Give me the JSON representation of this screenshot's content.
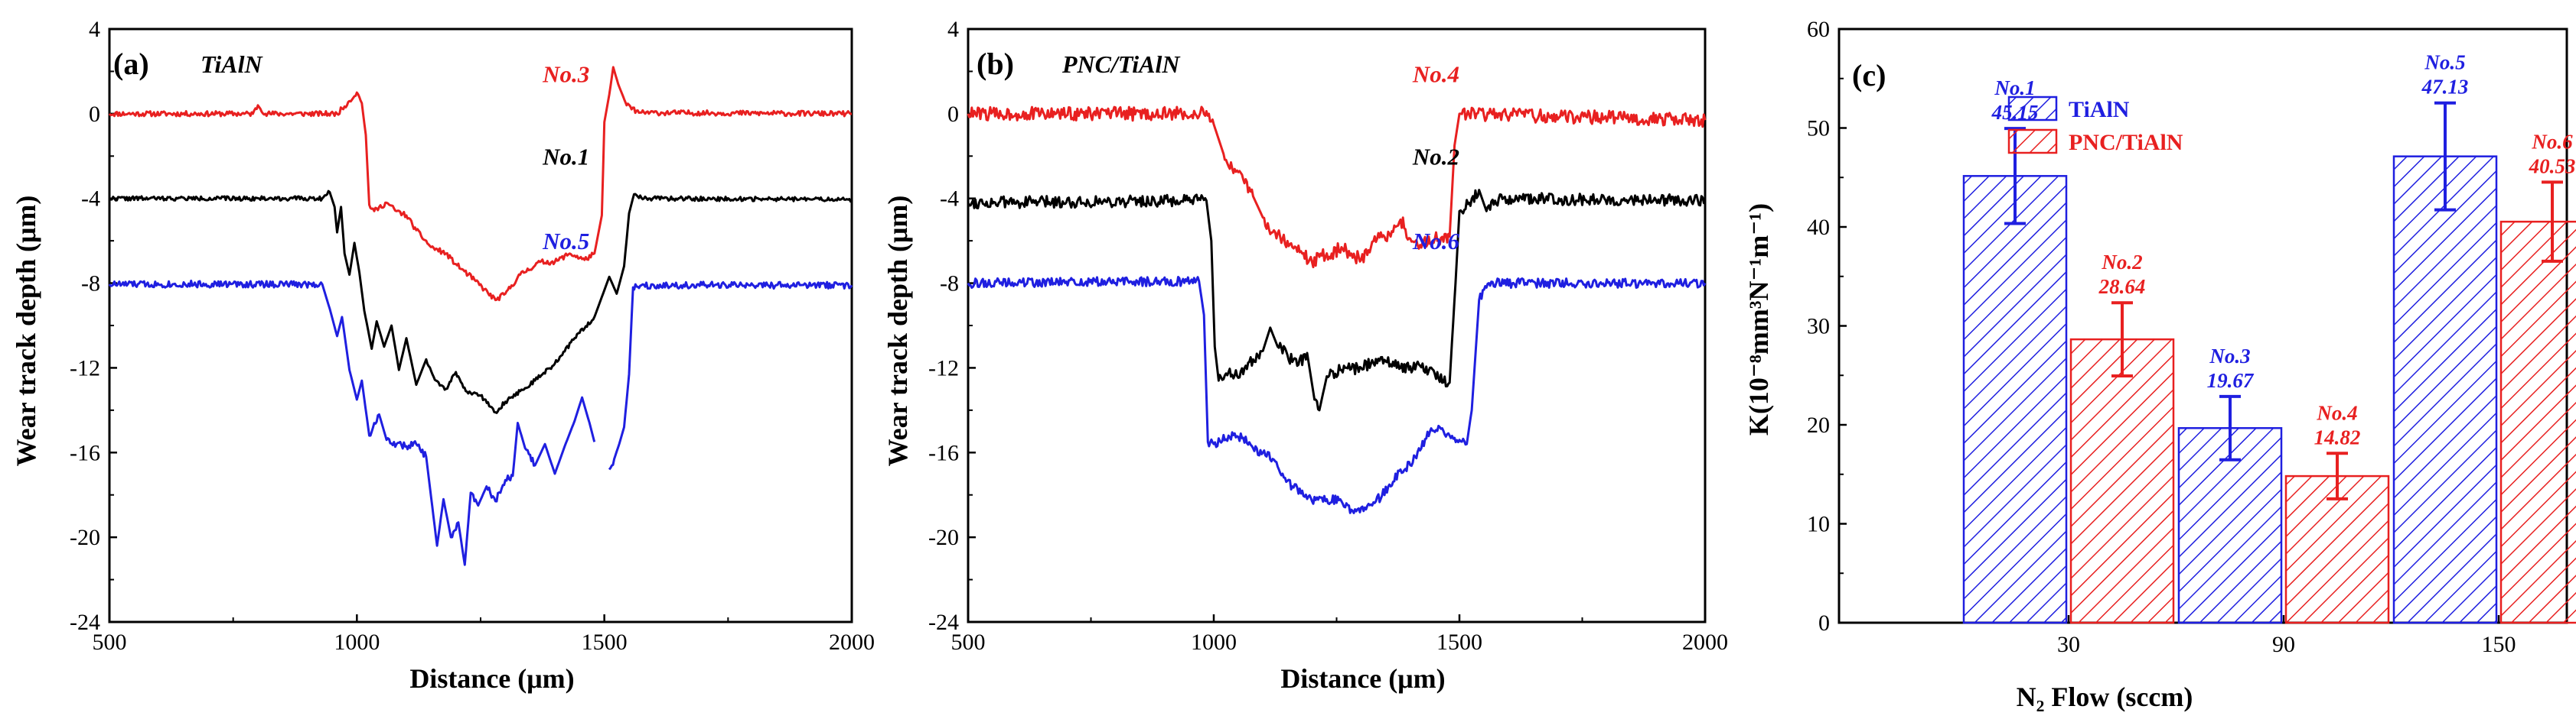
{
  "colors": {
    "TiAlN": "#1f1fe0",
    "PNC": "#e82020",
    "black": "#000000"
  },
  "chart_data": [
    {
      "type": "line",
      "panel_label": "(a)",
      "title": "TiAlN",
      "xlabel": "Distance (μm)",
      "ylabel": "Wear track depth (μm)",
      "xlim": [
        500,
        2000
      ],
      "ylim": [
        -24,
        4
      ],
      "xticks": [
        500,
        1000,
        1500,
        2000
      ],
      "yticks": [
        4,
        0,
        -4,
        -8,
        -12,
        -16,
        -20,
        -24
      ],
      "xtick_labels": [
        "500",
        "1000",
        "1500",
        "2000"
      ],
      "ytick_labels": [
        "4",
        "0",
        "-4",
        "-8",
        "-12",
        "-16",
        "-20",
        "-24"
      ],
      "series": [
        {
          "name": "No.3",
          "color": "#e82020",
          "noise": 0.12,
          "seed": 11,
          "points": [
            [
              500,
              0
            ],
            [
              790,
              0
            ],
            [
              800,
              0.4
            ],
            [
              815,
              0
            ],
            [
              960,
              0
            ],
            [
              985,
              0.6
            ],
            [
              1000,
              1.0
            ],
            [
              1010,
              0.5
            ],
            [
              1018,
              -1.0
            ],
            [
              1025,
              -4.3
            ],
            [
              1035,
              -4.6
            ],
            [
              1060,
              -4.2
            ],
            [
              1080,
              -4.6
            ],
            [
              1100,
              -4.8
            ],
            [
              1120,
              -5.5
            ],
            [
              1150,
              -6.3
            ],
            [
              1180,
              -6.6
            ],
            [
              1200,
              -7.1
            ],
            [
              1240,
              -7.9
            ],
            [
              1280,
              -8.8
            ],
            [
              1300,
              -8.5
            ],
            [
              1330,
              -7.6
            ],
            [
              1370,
              -7.0
            ],
            [
              1400,
              -7.0
            ],
            [
              1430,
              -6.6
            ],
            [
              1460,
              -6.9
            ],
            [
              1480,
              -6.6
            ],
            [
              1495,
              -4.8
            ],
            [
              1500,
              -0.4
            ],
            [
              1510,
              0.9
            ],
            [
              1518,
              2.2
            ],
            [
              1528,
              1.4
            ],
            [
              1545,
              0.4
            ],
            [
              1570,
              0.05
            ],
            [
              2000,
              0
            ]
          ]
        },
        {
          "name": "No.1",
          "color": "#000000",
          "noise": 0.1,
          "seed": 22,
          "points": [
            [
              500,
              -4
            ],
            [
              930,
              -4
            ],
            [
              945,
              -3.7
            ],
            [
              955,
              -4.4
            ],
            [
              960,
              -5.6
            ],
            [
              968,
              -4.4
            ],
            [
              975,
              -6.6
            ],
            [
              985,
              -7.6
            ],
            [
              995,
              -6.1
            ],
            [
              1005,
              -7.5
            ],
            [
              1015,
              -9.3
            ],
            [
              1030,
              -11.1
            ],
            [
              1040,
              -9.8
            ],
            [
              1055,
              -11.0
            ],
            [
              1070,
              -10.0
            ],
            [
              1085,
              -12.1
            ],
            [
              1100,
              -10.6
            ],
            [
              1120,
              -12.8
            ],
            [
              1140,
              -11.6
            ],
            [
              1160,
              -12.6
            ],
            [
              1180,
              -13.0
            ],
            [
              1200,
              -12.2
            ],
            [
              1220,
              -13.1
            ],
            [
              1240,
              -13.2
            ],
            [
              1260,
              -13.5
            ],
            [
              1280,
              -14.1
            ],
            [
              1300,
              -13.6
            ],
            [
              1330,
              -13.1
            ],
            [
              1360,
              -12.6
            ],
            [
              1400,
              -11.8
            ],
            [
              1440,
              -10.6
            ],
            [
              1480,
              -9.6
            ],
            [
              1510,
              -7.7
            ],
            [
              1525,
              -8.5
            ],
            [
              1540,
              -7.2
            ],
            [
              1550,
              -4.7
            ],
            [
              1560,
              -3.8
            ],
            [
              1580,
              -4.0
            ],
            [
              2000,
              -4.05
            ]
          ]
        },
        {
          "name": "No.5",
          "color": "#1f1fe0",
          "noise": 0.16,
          "seed": 33,
          "points": [
            [
              500,
              -8.05
            ],
            [
              930,
              -8.05
            ],
            [
              945,
              -9.2
            ],
            [
              960,
              -10.5
            ],
            [
              970,
              -9.6
            ],
            [
              985,
              -12.1
            ],
            [
              1000,
              -13.5
            ],
            [
              1010,
              -12.6
            ],
            [
              1025,
              -15.2
            ],
            [
              1045,
              -14.2
            ],
            [
              1060,
              -15.4
            ],
            [
              1080,
              -15.6
            ],
            [
              1100,
              -15.7
            ],
            [
              1120,
              -15.6
            ],
            [
              1140,
              -16.2
            ],
            [
              1150,
              -18.1
            ],
            [
              1162,
              -20.4
            ],
            [
              1175,
              -18.2
            ],
            [
              1190,
              -20.0
            ],
            [
              1205,
              -19.3
            ],
            [
              1218,
              -21.3
            ],
            [
              1230,
              -17.9
            ],
            [
              1245,
              -18.5
            ],
            [
              1262,
              -17.6
            ],
            [
              1280,
              -18.3
            ],
            [
              1300,
              -17.3
            ],
            [
              1315,
              -17.1
            ],
            [
              1325,
              -14.6
            ],
            [
              1340,
              -15.8
            ],
            [
              1360,
              -16.6
            ],
            [
              1380,
              -15.6
            ],
            [
              1400,
              -17.0
            ],
            [
              1420,
              -15.7
            ],
            [
              1440,
              -14.5
            ],
            [
              1455,
              -13.4
            ],
            [
              1470,
              -14.6
            ],
            [
              1480,
              -15.5
            ],
            null,
            [
              1510,
              -16.8
            ],
            [
              1520,
              -16.3
            ],
            [
              1530,
              -15.6
            ],
            [
              1540,
              -14.8
            ],
            [
              1550,
              -12.3
            ],
            [
              1558,
              -8.2
            ],
            [
              1575,
              -8.1
            ],
            [
              2000,
              -8.1
            ]
          ]
        }
      ],
      "annotations": [
        {
          "text": "No.3",
          "color": "#e82020",
          "x": 1470,
          "y": 1.5
        },
        {
          "text": "No.1",
          "color": "#000000",
          "x": 1470,
          "y": -2.4
        },
        {
          "text": "No.5",
          "color": "#1f1fe0",
          "x": 1470,
          "y": -6.4
        }
      ]
    },
    {
      "type": "line",
      "panel_label": "(b)",
      "title": "PNC/TiAlN",
      "xlabel": "Distance (μm)",
      "ylabel": "Wear track depth (μm)",
      "xlim": [
        500,
        2000
      ],
      "ylim": [
        -24,
        4
      ],
      "xticks": [
        500,
        1000,
        1500,
        2000
      ],
      "yticks": [
        4,
        0,
        -4,
        -8,
        -12,
        -16,
        -20,
        -24
      ],
      "xtick_labels": [
        "500",
        "1000",
        "1500",
        "2000"
      ],
      "ytick_labels": [
        "4",
        "0",
        "-4",
        "-8",
        "-12",
        "-16",
        "-20",
        "-24"
      ],
      "series": [
        {
          "name": "No.4",
          "color": "#e82020",
          "noise": 0.32,
          "seed": 44,
          "points": [
            [
              500,
              0
            ],
            [
              990,
              0
            ],
            [
              1000,
              -0.5
            ],
            [
              1020,
              -1.9
            ],
            [
              1040,
              -2.8
            ],
            [
              1060,
              -3.1
            ],
            [
              1080,
              -3.9
            ],
            [
              1100,
              -4.9
            ],
            [
              1120,
              -5.6
            ],
            [
              1140,
              -5.9
            ],
            [
              1160,
              -6.3
            ],
            [
              1180,
              -6.6
            ],
            [
              1200,
              -7.0
            ],
            [
              1220,
              -6.7
            ],
            [
              1240,
              -6.6
            ],
            [
              1260,
              -6.3
            ],
            [
              1280,
              -6.6
            ],
            [
              1300,
              -6.9
            ],
            [
              1320,
              -6.3
            ],
            [
              1340,
              -5.6
            ],
            [
              1360,
              -5.8
            ],
            [
              1380,
              -5.0
            ],
            [
              1400,
              -5.9
            ],
            [
              1420,
              -6.2
            ],
            [
              1450,
              -5.9
            ],
            [
              1480,
              -5.8
            ],
            [
              1490,
              -1.5
            ],
            [
              1500,
              0
            ],
            [
              2000,
              -0.3
            ]
          ]
        },
        {
          "name": "No.2",
          "color": "#000000",
          "noise": 0.28,
          "seed": 55,
          "points": [
            [
              500,
              -4.2
            ],
            [
              985,
              -4.1
            ],
            [
              995,
              -6.0
            ],
            [
              1002,
              -11.0
            ],
            [
              1010,
              -12.6
            ],
            [
              1030,
              -12.2
            ],
            [
              1060,
              -12.3
            ],
            [
              1080,
              -11.6
            ],
            [
              1100,
              -11.2
            ],
            [
              1115,
              -10.1
            ],
            [
              1130,
              -11.0
            ],
            [
              1150,
              -11.4
            ],
            [
              1170,
              -11.9
            ],
            [
              1190,
              -11.3
            ],
            [
              1205,
              -13.5
            ],
            [
              1215,
              -14.0
            ],
            [
              1230,
              -12.4
            ],
            [
              1260,
              -12.1
            ],
            [
              1300,
              -12.0
            ],
            [
              1340,
              -11.5
            ],
            [
              1380,
              -12.0
            ],
            [
              1420,
              -11.9
            ],
            [
              1450,
              -12.3
            ],
            [
              1480,
              -12.7
            ],
            [
              1492,
              -8.0
            ],
            [
              1500,
              -4.6
            ],
            [
              1520,
              -4.2
            ],
            [
              1540,
              -3.6
            ],
            [
              1555,
              -4.6
            ],
            [
              1580,
              -4.0
            ],
            [
              2000,
              -4.1
            ]
          ]
        },
        {
          "name": "No.6",
          "color": "#1f1fe0",
          "noise": 0.22,
          "seed": 66,
          "points": [
            [
              500,
              -8.0
            ],
            [
              970,
              -7.9
            ],
            [
              980,
              -9.5
            ],
            [
              988,
              -15.5
            ],
            [
              1000,
              -15.6
            ],
            [
              1030,
              -15.2
            ],
            [
              1060,
              -15.3
            ],
            [
              1080,
              -15.8
            ],
            [
              1100,
              -16.0
            ],
            [
              1120,
              -16.3
            ],
            [
              1140,
              -17.0
            ],
            [
              1160,
              -17.6
            ],
            [
              1180,
              -17.8
            ],
            [
              1200,
              -18.3
            ],
            [
              1230,
              -18.2
            ],
            [
              1260,
              -18.3
            ],
            [
              1280,
              -18.7
            ],
            [
              1300,
              -18.6
            ],
            [
              1330,
              -18.3
            ],
            [
              1360,
              -17.6
            ],
            [
              1380,
              -16.8
            ],
            [
              1400,
              -16.6
            ],
            [
              1420,
              -15.9
            ],
            [
              1440,
              -15.0
            ],
            [
              1460,
              -14.8
            ],
            [
              1480,
              -15.2
            ],
            [
              1500,
              -15.4
            ],
            [
              1515,
              -15.6
            ],
            [
              1525,
              -14.0
            ],
            [
              1540,
              -8.8
            ],
            [
              1560,
              -8.0
            ],
            [
              2000,
              -8.0
            ]
          ]
        }
      ],
      "annotations": [
        {
          "text": "No.4",
          "color": "#e82020",
          "x": 1500,
          "y": 1.5
        },
        {
          "text": "No.2",
          "color": "#000000",
          "x": 1500,
          "y": -2.4
        },
        {
          "text": "No.6",
          "color": "#1f1fe0",
          "x": 1500,
          "y": -6.4
        }
      ]
    },
    {
      "type": "bar",
      "panel_label": "(c)",
      "xlabel": "N₂ Flow (sccm)",
      "ylabel": "K(10⁻⁸mm³N⁻¹m⁻¹)",
      "categories": [
        "30",
        "90",
        "150"
      ],
      "ylim": [
        0,
        60
      ],
      "yticks": [
        0,
        10,
        20,
        30,
        40,
        50,
        60
      ],
      "ytick_labels": [
        "0",
        "10",
        "20",
        "30",
        "40",
        "50",
        "60"
      ],
      "legend_position": "top-center",
      "series": [
        {
          "name": "TiAlN",
          "color": "#1f1fe0",
          "values": [
            45.15,
            19.67,
            47.13
          ],
          "errors": [
            4.8,
            3.2,
            5.4
          ],
          "sample_labels": [
            "No.1",
            "No.3",
            "No.5"
          ],
          "value_labels": [
            "45.15",
            "19.67",
            "47.13"
          ]
        },
        {
          "name": "PNC/TiAlN",
          "color": "#e82020",
          "values": [
            28.64,
            14.82,
            40.53
          ],
          "errors": [
            3.7,
            2.3,
            4.0
          ],
          "sample_labels": [
            "No.2",
            "No.4",
            "No.6"
          ],
          "value_labels": [
            "28.64",
            "14.82",
            "40.53"
          ]
        }
      ]
    }
  ]
}
